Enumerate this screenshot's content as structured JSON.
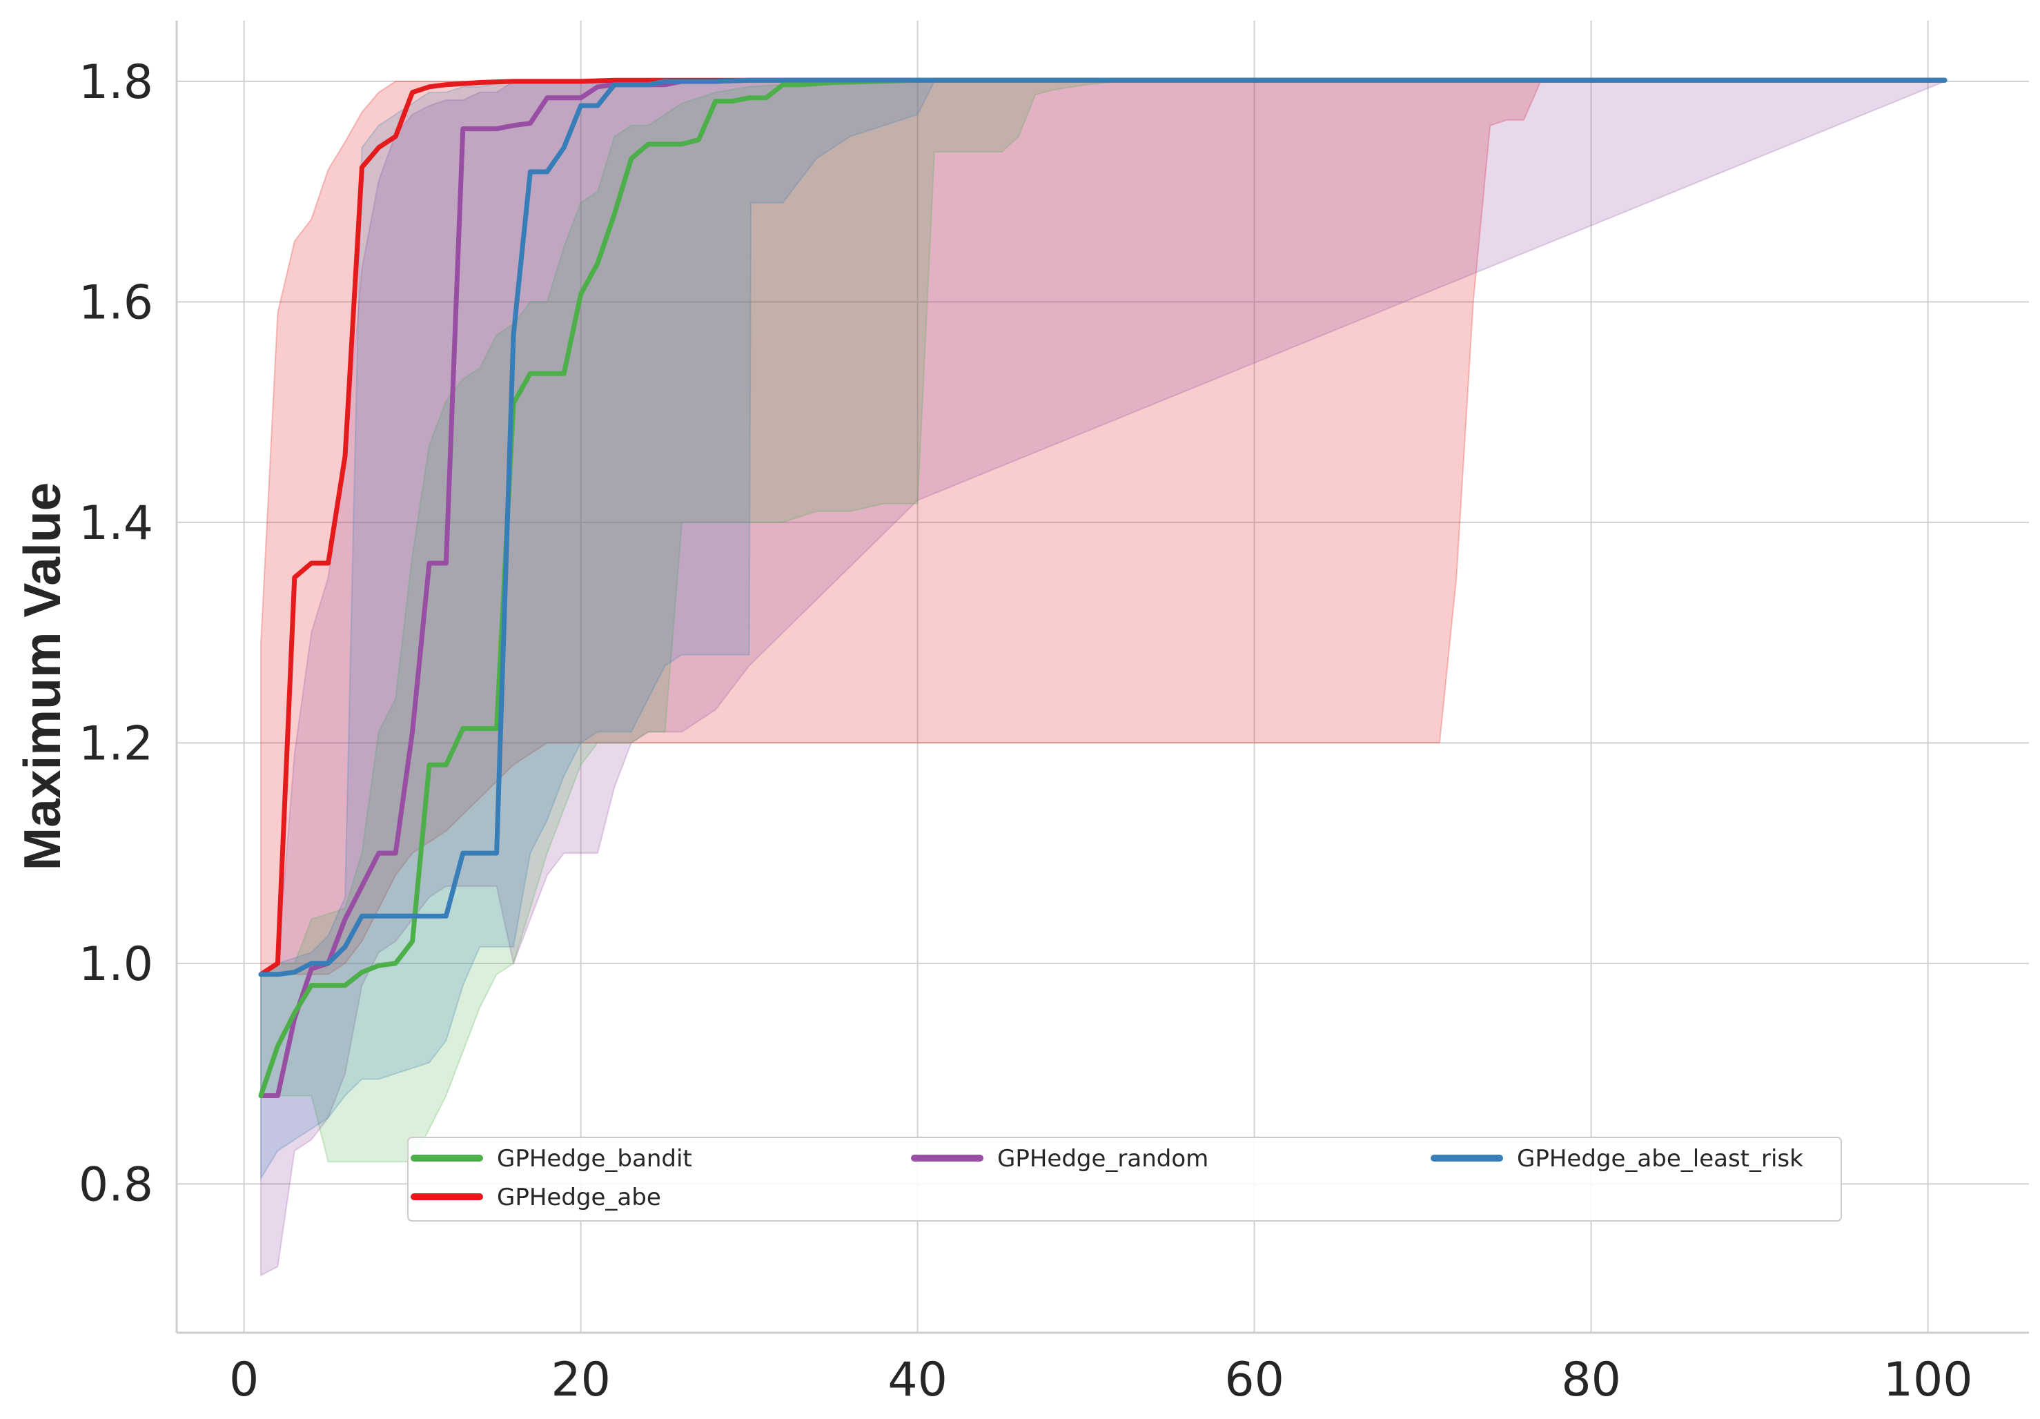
{
  "chart_data": {
    "type": "line",
    "title": "",
    "xlabel": "",
    "ylabel": "Maximum Value",
    "xlim": [
      -4,
      106
    ],
    "ylim": [
      0.665,
      1.855
    ],
    "xticks": [
      0,
      20,
      40,
      60,
      80,
      100
    ],
    "xtick_labels": [
      "0",
      "20",
      "40",
      "60",
      "80",
      "100"
    ],
    "yticks": [
      0.8,
      1.0,
      1.2,
      1.4,
      1.6,
      1.8
    ],
    "ytick_labels": [
      "0.8",
      "1.0",
      "1.2",
      "1.4",
      "1.6",
      "1.8"
    ],
    "grid": true,
    "legend": {
      "placement": "lower center",
      "columns": 3
    },
    "series": [
      {
        "name": "GPHedge_abe",
        "color": "#e41a1c",
        "x": [
          1,
          2,
          3,
          4,
          5,
          6,
          7,
          8,
          9,
          10,
          11,
          12,
          14,
          16,
          18,
          20,
          22,
          25,
          30,
          40,
          101
        ],
        "mean": [
          0.99,
          1.0,
          1.35,
          1.363,
          1.363,
          1.46,
          1.722,
          1.74,
          1.75,
          1.79,
          1.795,
          1.797,
          1.799,
          1.8,
          1.8,
          1.8,
          1.801,
          1.801,
          1.801,
          1.801,
          1.801
        ],
        "band": {
          "x": [
            1,
            2,
            3,
            4,
            5,
            6,
            7,
            8,
            9,
            10,
            12,
            14,
            16,
            18,
            20,
            22,
            24,
            26,
            30,
            40,
            50,
            60,
            70,
            71,
            72,
            73,
            74,
            75,
            76,
            77,
            78,
            80,
            101
          ],
          "lower": [
            0.99,
            0.99,
            0.99,
            0.99,
            0.99,
            1.0,
            1.02,
            1.05,
            1.08,
            1.1,
            1.12,
            1.15,
            1.18,
            1.2,
            1.2,
            1.2,
            1.2,
            1.2,
            1.2,
            1.2,
            1.2,
            1.2,
            1.2,
            1.2,
            1.35,
            1.6,
            1.76,
            1.765,
            1.765,
            1.8,
            1.8,
            1.8,
            1.8
          ],
          "upper": [
            1.29,
            1.59,
            1.655,
            1.675,
            1.72,
            1.745,
            1.772,
            1.79,
            1.8,
            1.8,
            1.8,
            1.8,
            1.8,
            1.8,
            1.8,
            1.8,
            1.8,
            1.8,
            1.8,
            1.8,
            1.8,
            1.8,
            1.8,
            1.8,
            1.8,
            1.8,
            1.8,
            1.8,
            1.8,
            1.8,
            1.8,
            1.8,
            1.8
          ]
        }
      },
      {
        "name": "GPHedge_random",
        "color": "#984ea3",
        "x": [
          1,
          2,
          3,
          4,
          5,
          6,
          7,
          8,
          9,
          10,
          11,
          12,
          13,
          14,
          15,
          16,
          17,
          18,
          19,
          20,
          21,
          22,
          23,
          24,
          25,
          26,
          27,
          28,
          30,
          40,
          101
        ],
        "mean": [
          0.88,
          0.88,
          0.95,
          0.995,
          1.0,
          1.04,
          1.07,
          1.1,
          1.1,
          1.21,
          1.363,
          1.363,
          1.757,
          1.757,
          1.757,
          1.76,
          1.762,
          1.785,
          1.785,
          1.785,
          1.795,
          1.797,
          1.797,
          1.797,
          1.797,
          1.8,
          1.8,
          1.8,
          1.801,
          1.801,
          1.801
        ],
        "band": {
          "x": [
            1,
            2,
            3,
            4,
            5,
            6,
            7,
            8,
            9,
            10,
            11,
            12,
            13,
            14,
            15,
            16,
            17,
            18,
            19,
            20,
            21,
            22,
            23,
            24,
            25,
            26,
            28,
            30,
            40,
            101
          ],
          "lower": [
            0.717,
            0.725,
            0.83,
            0.84,
            0.86,
            0.9,
            0.98,
            1.01,
            1.02,
            1.04,
            1.06,
            1.07,
            1.07,
            1.07,
            1.07,
            1.0,
            1.04,
            1.08,
            1.1,
            1.1,
            1.1,
            1.16,
            1.2,
            1.21,
            1.21,
            1.21,
            1.23,
            1.27,
            1.42,
            1.8
          ],
          "upper": [
            0.99,
            1.0,
            1.19,
            1.3,
            1.35,
            1.46,
            1.63,
            1.71,
            1.752,
            1.77,
            1.778,
            1.783,
            1.783,
            1.79,
            1.79,
            1.8,
            1.8,
            1.8,
            1.8,
            1.8,
            1.8,
            1.8,
            1.8,
            1.8,
            1.8,
            1.8,
            1.8,
            1.8,
            1.8,
            1.8
          ]
        }
      },
      {
        "name": "GPHedge_bandit",
        "color": "#4daf4a",
        "x": [
          1,
          2,
          3,
          4,
          5,
          6,
          7,
          8,
          9,
          10,
          11,
          12,
          13,
          14,
          15,
          16,
          17,
          18,
          19,
          20,
          21,
          22,
          23,
          24,
          25,
          26,
          27,
          28,
          29,
          30,
          31,
          32,
          33,
          35,
          40,
          101
        ],
        "mean": [
          0.88,
          0.925,
          0.955,
          0.98,
          0.98,
          0.98,
          0.992,
          0.998,
          1.0,
          1.02,
          1.18,
          1.18,
          1.213,
          1.213,
          1.213,
          1.508,
          1.535,
          1.535,
          1.535,
          1.607,
          1.635,
          1.68,
          1.73,
          1.743,
          1.743,
          1.743,
          1.747,
          1.782,
          1.782,
          1.785,
          1.785,
          1.797,
          1.797,
          1.799,
          1.801,
          1.801
        ],
        "band": {
          "x": [
            1,
            2,
            3,
            4,
            5,
            6,
            7,
            8,
            9,
            10,
            11,
            12,
            13,
            14,
            15,
            16,
            17,
            18,
            19,
            20,
            21,
            22,
            23,
            24,
            25,
            26,
            28,
            30,
            32,
            34,
            36,
            38,
            40,
            41,
            42,
            44,
            45,
            46,
            47,
            48,
            50,
            52,
            101
          ],
          "lower": [
            0.88,
            0.88,
            0.88,
            0.88,
            0.82,
            0.82,
            0.82,
            0.82,
            0.82,
            0.82,
            0.85,
            0.88,
            0.92,
            0.96,
            0.99,
            1.0,
            1.05,
            1.1,
            1.14,
            1.18,
            1.2,
            1.2,
            1.2,
            1.21,
            1.21,
            1.4,
            1.4,
            1.4,
            1.4,
            1.41,
            1.41,
            1.417,
            1.417,
            1.736,
            1.736,
            1.736,
            1.736,
            1.75,
            1.788,
            1.792,
            1.797,
            1.8,
            1.8
          ],
          "upper": [
            0.99,
            1.0,
            1.0,
            1.04,
            1.045,
            1.05,
            1.1,
            1.21,
            1.24,
            1.37,
            1.47,
            1.51,
            1.53,
            1.54,
            1.57,
            1.58,
            1.6,
            1.6,
            1.65,
            1.69,
            1.7,
            1.75,
            1.76,
            1.76,
            1.77,
            1.78,
            1.79,
            1.795,
            1.797,
            1.8,
            1.8,
            1.8,
            1.8,
            1.8,
            1.8,
            1.8,
            1.8,
            1.8,
            1.8,
            1.8,
            1.8,
            1.8,
            1.8
          ]
        }
      },
      {
        "name": "GPHedge_abe_least_risk",
        "color": "#377eb8",
        "x": [
          1,
          2,
          3,
          4,
          5,
          6,
          7,
          8,
          9,
          10,
          11,
          12,
          13,
          14,
          15,
          16,
          17,
          18,
          19,
          20,
          21,
          22,
          23,
          24,
          25,
          26,
          28,
          30,
          40,
          101
        ],
        "mean": [
          0.99,
          0.99,
          0.992,
          1.0,
          1.0,
          1.015,
          1.043,
          1.043,
          1.043,
          1.043,
          1.043,
          1.043,
          1.1,
          1.1,
          1.1,
          1.57,
          1.718,
          1.718,
          1.74,
          1.778,
          1.778,
          1.797,
          1.797,
          1.797,
          1.8,
          1.8,
          1.8,
          1.801,
          1.801,
          1.801
        ],
        "band": {
          "x": [
            1,
            2,
            3,
            4,
            5,
            6,
            7,
            8,
            9,
            10,
            11,
            12,
            13,
            14,
            15,
            16,
            17,
            18,
            19,
            20,
            21,
            22,
            23,
            24,
            25,
            26,
            28,
            30,
            30.1,
            32,
            34,
            36,
            38,
            40,
            41,
            101
          ],
          "lower": [
            0.805,
            0.83,
            0.84,
            0.85,
            0.86,
            0.88,
            0.895,
            0.895,
            0.9,
            0.905,
            0.91,
            0.93,
            0.98,
            1.015,
            1.015,
            1.015,
            1.1,
            1.13,
            1.17,
            1.2,
            1.21,
            1.21,
            1.21,
            1.24,
            1.27,
            1.28,
            1.28,
            1.28,
            1.69,
            1.69,
            1.73,
            1.75,
            1.76,
            1.77,
            1.8,
            1.8
          ],
          "upper": [
            0.99,
            1.0,
            1.005,
            1.01,
            1.025,
            1.06,
            1.74,
            1.76,
            1.77,
            1.78,
            1.79,
            1.79,
            1.795,
            1.795,
            1.798,
            1.8,
            1.8,
            1.8,
            1.8,
            1.8,
            1.8,
            1.8,
            1.8,
            1.8,
            1.8,
            1.8,
            1.8,
            1.8,
            1.8,
            1.8,
            1.8,
            1.8,
            1.8,
            1.8,
            1.8,
            1.8
          ]
        }
      }
    ],
    "legend_order": [
      "GPHedge_bandit",
      "GPHedge_abe",
      "GPHedge_random",
      "GPHedge_abe_least_risk"
    ]
  }
}
